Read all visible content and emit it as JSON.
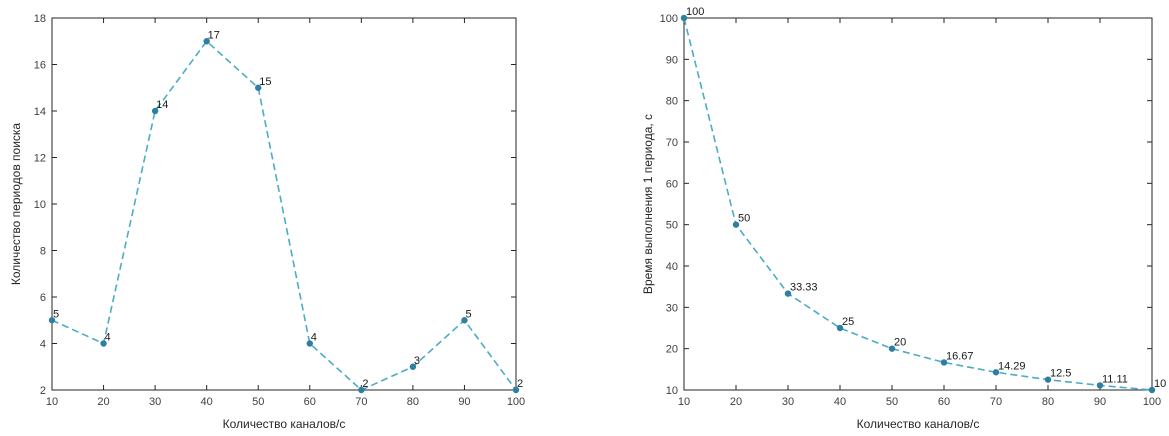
{
  "chart_data": [
    {
      "type": "line",
      "title": "",
      "xlabel": "Количество каналов/c",
      "ylabel": "Количество периодов поиска",
      "x": [
        10,
        20,
        30,
        40,
        50,
        60,
        70,
        80,
        90,
        100
      ],
      "series": [
        {
          "values": [
            5,
            4,
            14,
            17,
            15,
            4,
            2,
            3,
            5,
            2
          ],
          "labels": [
            "5",
            "4",
            "14",
            "17",
            "15",
            "4",
            "2",
            "3",
            "5",
            "2"
          ],
          "color": "#4bacc6"
        }
      ],
      "xlim": [
        10,
        100
      ],
      "ylim": [
        2,
        18
      ],
      "xticks": [
        "10",
        "20",
        "30",
        "40",
        "50",
        "60",
        "70",
        "80",
        "90",
        "100"
      ],
      "yticks": [
        "2",
        "4",
        "6",
        "8",
        "10",
        "12",
        "14",
        "16",
        "18"
      ],
      "line_style": "dashed",
      "grid": false,
      "legend": "none"
    },
    {
      "type": "line",
      "title": "",
      "xlabel": "Количество каналов/c",
      "ylabel": "Время выполнения 1 периода, с",
      "x": [
        10,
        20,
        30,
        40,
        50,
        60,
        70,
        80,
        90,
        100
      ],
      "series": [
        {
          "values": [
            100,
            50,
            33.33,
            25,
            20,
            16.67,
            14.29,
            12.5,
            11.11,
            10
          ],
          "labels": [
            "100",
            "50",
            "33.33",
            "25",
            "20",
            "16.67",
            "14.29",
            "12.5",
            "11.11",
            "10"
          ],
          "color": "#4bacc6"
        }
      ],
      "xlim": [
        10,
        100
      ],
      "ylim": [
        10,
        100
      ],
      "xticks": [
        "10",
        "20",
        "30",
        "40",
        "50",
        "60",
        "70",
        "80",
        "90",
        "100"
      ],
      "yticks": [
        "10",
        "20",
        "30",
        "40",
        "50",
        "60",
        "70",
        "80",
        "90",
        "100"
      ],
      "line_style": "dashed",
      "grid": false,
      "legend": "none"
    }
  ]
}
